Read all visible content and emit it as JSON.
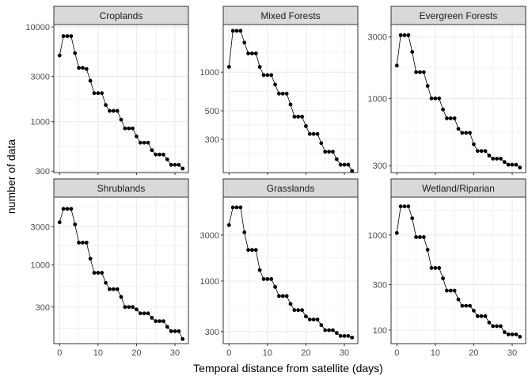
{
  "chart_data": {
    "type": "line",
    "xlabel": "Temporal distance from satellite (days)",
    "ylabel": "number of data",
    "yscale": "log",
    "x": [
      0,
      1,
      2,
      3,
      4,
      5,
      6,
      7,
      8,
      9,
      10,
      11,
      12,
      13,
      14,
      15,
      16,
      17,
      18,
      19,
      20,
      21,
      22,
      23,
      24,
      25,
      26,
      27,
      28,
      29,
      30,
      31,
      32
    ],
    "xticks": [
      0,
      10,
      20,
      30
    ],
    "xlim": [
      -1.5,
      33.5
    ],
    "grid": true,
    "legend": "none",
    "colors": {
      "line": "#000000",
      "point": "#000000",
      "strip_fill": "#d9d9d9",
      "strip_border": "#333333",
      "panel_border": "#333333",
      "grid": "#ebebeb"
    },
    "panels": [
      {
        "name": "Croplands",
        "yticks": [
          300,
          1000,
          3000,
          10000
        ],
        "ylim": [
          290,
          10600
        ],
        "values": [
          5000,
          8000,
          8000,
          8000,
          5300,
          3700,
          3700,
          3600,
          2700,
          2000,
          2000,
          2000,
          1500,
          1300,
          1300,
          1300,
          1050,
          850,
          850,
          850,
          700,
          600,
          600,
          600,
          500,
          450,
          450,
          450,
          400,
          350,
          350,
          350,
          320
        ]
      },
      {
        "name": "Mixed Forests",
        "yticks": [
          300,
          500,
          1000
        ],
        "ylim": [
          165,
          2350
        ],
        "values": [
          1100,
          2100,
          2100,
          2100,
          1700,
          1400,
          1400,
          1400,
          1100,
          950,
          950,
          950,
          800,
          680,
          680,
          680,
          560,
          450,
          450,
          450,
          380,
          330,
          330,
          330,
          280,
          240,
          240,
          240,
          210,
          190,
          190,
          190,
          170
        ]
      },
      {
        "name": "Evergreen Forests",
        "yticks": [
          300,
          1000,
          3000
        ],
        "ylim": [
          265,
          3750
        ],
        "values": [
          1800,
          3100,
          3100,
          3100,
          2300,
          1600,
          1600,
          1600,
          1250,
          1000,
          1000,
          1000,
          820,
          700,
          700,
          700,
          580,
          540,
          540,
          540,
          440,
          390,
          390,
          390,
          360,
          340,
          340,
          340,
          320,
          305,
          305,
          305,
          290
        ]
      },
      {
        "name": "Shrublands",
        "yticks": [
          300,
          1000,
          3000
        ],
        "ylim": [
          105,
          7000
        ],
        "values": [
          3400,
          5000,
          5000,
          5000,
          3200,
          1900,
          1900,
          1900,
          1200,
          800,
          800,
          800,
          600,
          500,
          500,
          500,
          400,
          300,
          300,
          300,
          280,
          250,
          250,
          250,
          220,
          200,
          200,
          200,
          170,
          150,
          150,
          150,
          120
        ]
      },
      {
        "name": "Grasslands",
        "yticks": [
          300,
          1000,
          3000
        ],
        "ylim": [
          225,
          7400
        ],
        "values": [
          3800,
          5800,
          5800,
          5800,
          3200,
          2100,
          2100,
          2100,
          1300,
          1050,
          1050,
          1050,
          870,
          700,
          700,
          700,
          580,
          500,
          500,
          500,
          430,
          400,
          400,
          400,
          350,
          310,
          310,
          310,
          290,
          270,
          270,
          270,
          260
        ]
      },
      {
        "name": "Wetland/Riparian",
        "yticks": [
          100,
          300,
          1000
        ],
        "ylim": [
          72,
          2500
        ],
        "values": [
          1050,
          2000,
          2000,
          2000,
          1500,
          950,
          950,
          950,
          700,
          450,
          450,
          450,
          350,
          260,
          260,
          260,
          210,
          180,
          180,
          180,
          160,
          140,
          140,
          140,
          120,
          110,
          110,
          110,
          95,
          90,
          90,
          90,
          85
        ]
      }
    ]
  }
}
